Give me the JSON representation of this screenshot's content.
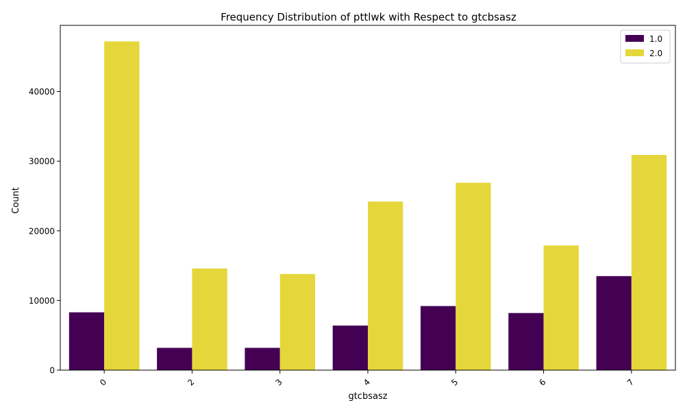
{
  "chart_data": {
    "type": "bar",
    "title": "Frequency Distribution of pttlwk with Respect to gtcbsasz",
    "xlabel": "gtcbsasz",
    "ylabel": "Count",
    "categories": [
      "0",
      "2",
      "3",
      "4",
      "5",
      "6",
      "7"
    ],
    "series": [
      {
        "name": "1.0",
        "color": "#440154",
        "values": [
          8300,
          3200,
          3200,
          6400,
          9200,
          8200,
          13500
        ]
      },
      {
        "name": "2.0",
        "color": "#e5d73b",
        "values": [
          47200,
          14600,
          13800,
          24200,
          26900,
          17900,
          30900
        ]
      }
    ],
    "ylim": [
      0,
      49500
    ],
    "yticks": [
      0,
      10000,
      20000,
      30000,
      40000
    ],
    "ytick_labels": [
      "0",
      "10000",
      "20000",
      "30000",
      "40000"
    ],
    "legend_position": "top-right",
    "grid": false,
    "xtick_rotation_deg": 45
  }
}
